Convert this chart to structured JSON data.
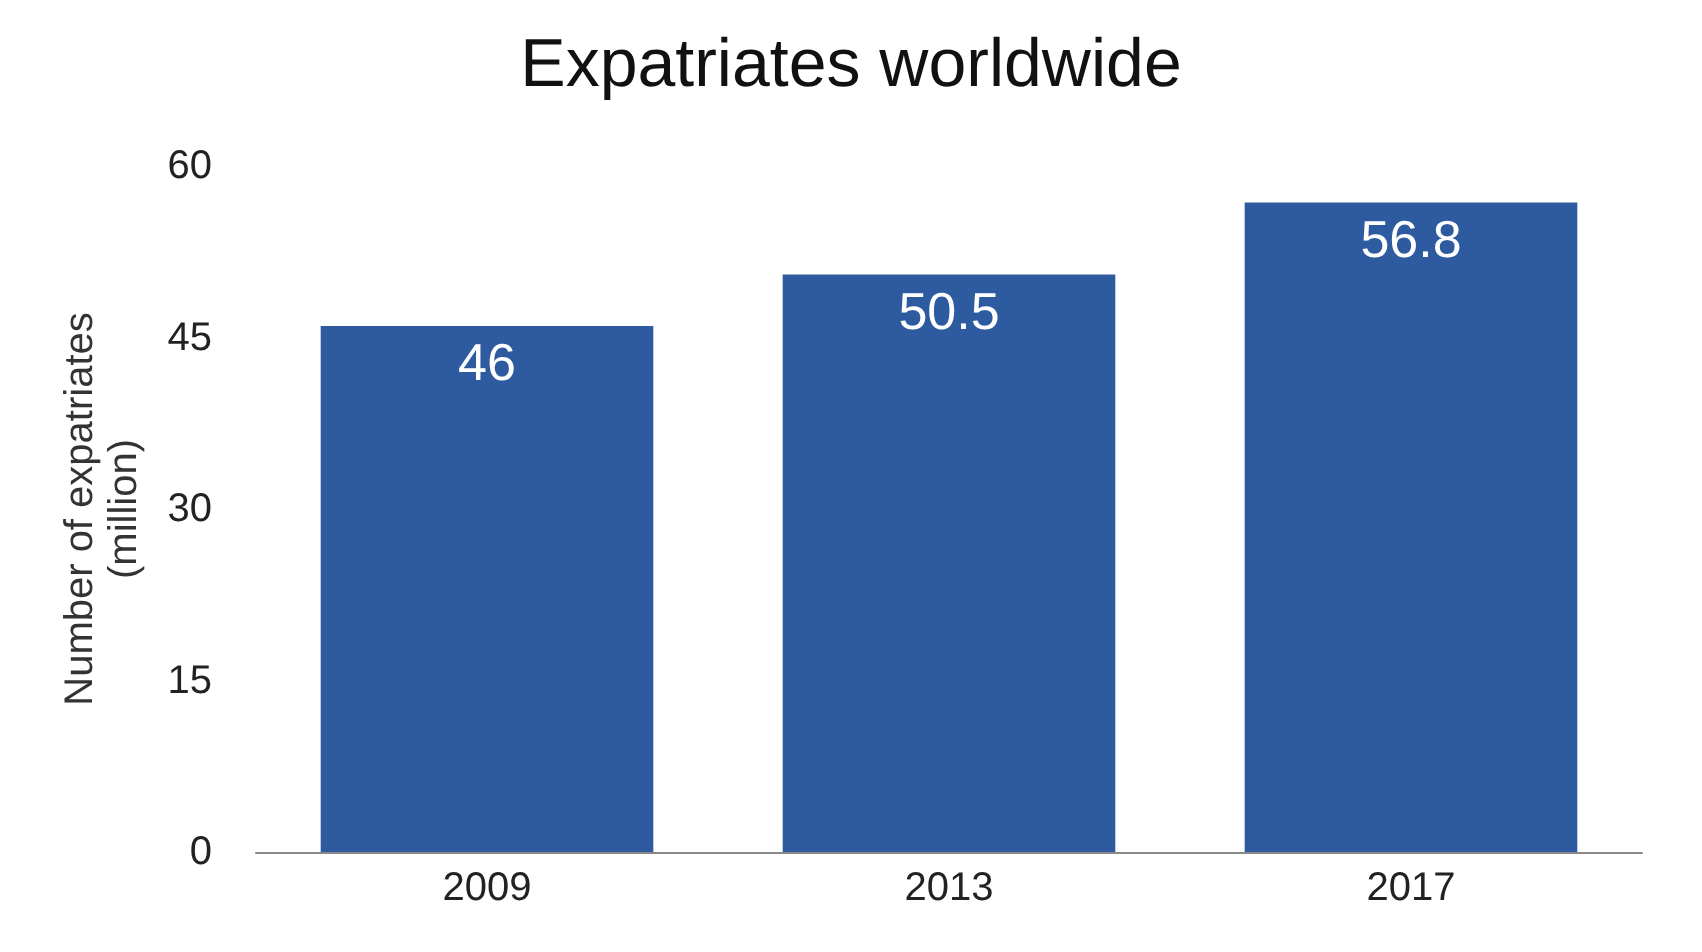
{
  "chart_data": {
    "type": "bar",
    "title": "Expatriates worldwide",
    "ylabel": "Number of expatriates\n(million)",
    "categories": [
      "2009",
      "2013",
      "2017"
    ],
    "values": [
      46,
      50.5,
      56.8
    ],
    "color": "#2e5b9f",
    "ylim": [
      0,
      60
    ],
    "yticks": [
      0,
      15,
      30,
      45,
      60
    ],
    "grid": false,
    "data_labels": true
  }
}
